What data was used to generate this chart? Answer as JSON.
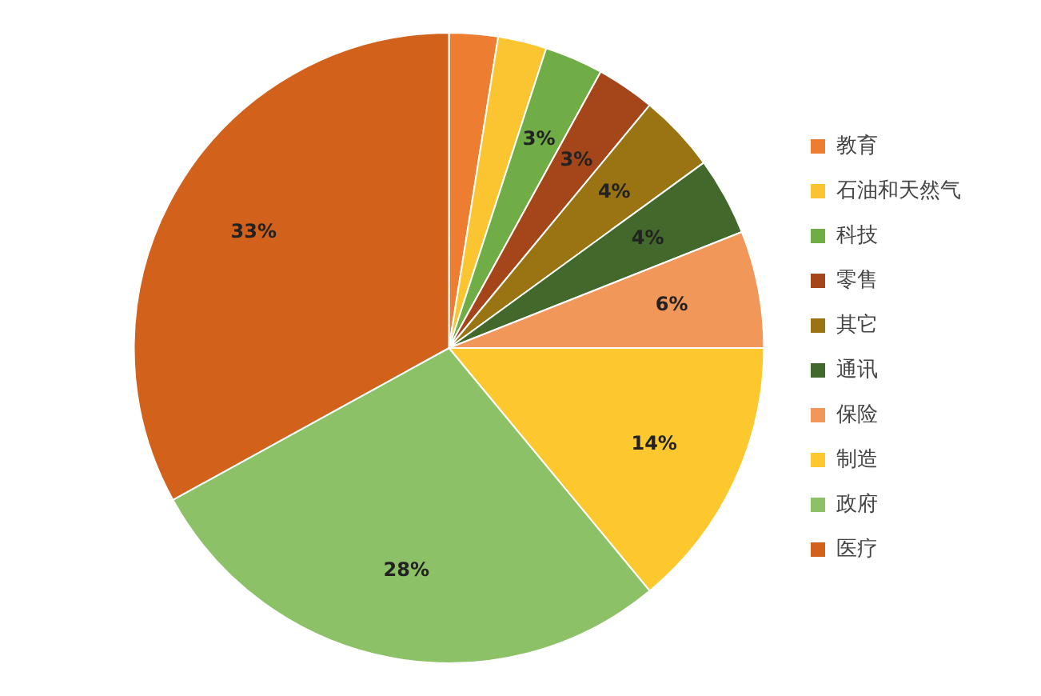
{
  "chart_data": {
    "type": "pie",
    "categories": [
      "教育",
      "石油和天然气",
      "科技",
      "零售",
      "其它",
      "通讯",
      "保险",
      "制造",
      "政府",
      "医疗"
    ],
    "values": [
      2.5,
      2.5,
      3,
      3,
      4,
      4,
      6,
      14,
      28,
      33
    ],
    "colors": [
      "#ed7d31",
      "#fbc531",
      "#70ad47",
      "#a5461a",
      "#9a7412",
      "#43682b",
      "#f1975a",
      "#fcc82e",
      "#8cc168",
      "#d2611c"
    ],
    "value_labels": [
      null,
      null,
      "3%",
      "3%",
      "4%",
      "4%",
      "6%",
      "14%",
      "28%",
      "33%"
    ],
    "legend": "right"
  }
}
